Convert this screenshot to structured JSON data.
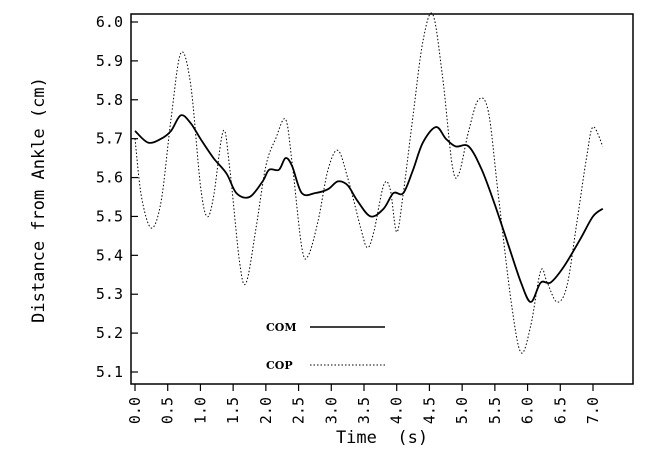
{
  "chart_data": {
    "type": "line",
    "title": "",
    "xlabel": "Time  (s)",
    "ylabel": "Distance from Ankle (cm)",
    "xlim": [
      0,
      7.2
    ],
    "ylim": [
      5.1,
      6.0
    ],
    "x_ticks": [
      "0.0",
      "0.5",
      "1.0",
      "1.5",
      "2.0",
      "2.5",
      "3.0",
      "3.5",
      "4.0",
      "4.5",
      "5.0",
      "5.5",
      "6.0",
      "6.5",
      "7.0"
    ],
    "y_ticks": [
      "5.1",
      "5.2",
      "5.3",
      "5.4",
      "5.5",
      "5.6",
      "5.7",
      "5.8",
      "5.9",
      "6.0"
    ],
    "grid": false,
    "legend_position": "bottom-left",
    "series": [
      {
        "name": "COM",
        "style": "solid",
        "color": "#000000",
        "points": [
          [
            0.0,
            5.72
          ],
          [
            0.2,
            5.69
          ],
          [
            0.4,
            5.7
          ],
          [
            0.55,
            5.72
          ],
          [
            0.7,
            5.76
          ],
          [
            0.85,
            5.74
          ],
          [
            1.0,
            5.7
          ],
          [
            1.2,
            5.65
          ],
          [
            1.4,
            5.61
          ],
          [
            1.55,
            5.56
          ],
          [
            1.75,
            5.55
          ],
          [
            1.95,
            5.59
          ],
          [
            2.05,
            5.62
          ],
          [
            2.2,
            5.62
          ],
          [
            2.3,
            5.65
          ],
          [
            2.4,
            5.63
          ],
          [
            2.55,
            5.56
          ],
          [
            2.75,
            5.56
          ],
          [
            2.95,
            5.57
          ],
          [
            3.1,
            5.59
          ],
          [
            3.25,
            5.58
          ],
          [
            3.4,
            5.54
          ],
          [
            3.6,
            5.5
          ],
          [
            3.8,
            5.52
          ],
          [
            3.95,
            5.56
          ],
          [
            4.1,
            5.56
          ],
          [
            4.25,
            5.62
          ],
          [
            4.4,
            5.69
          ],
          [
            4.6,
            5.73
          ],
          [
            4.75,
            5.7
          ],
          [
            4.9,
            5.68
          ],
          [
            5.1,
            5.68
          ],
          [
            5.3,
            5.62
          ],
          [
            5.5,
            5.53
          ],
          [
            5.7,
            5.43
          ],
          [
            5.9,
            5.33
          ],
          [
            6.05,
            5.28
          ],
          [
            6.2,
            5.33
          ],
          [
            6.35,
            5.33
          ],
          [
            6.55,
            5.37
          ],
          [
            6.8,
            5.44
          ],
          [
            7.0,
            5.5
          ],
          [
            7.15,
            5.52
          ]
        ]
      },
      {
        "name": "COP",
        "style": "dotted",
        "color": "#000000",
        "points": [
          [
            0.0,
            5.7
          ],
          [
            0.1,
            5.55
          ],
          [
            0.25,
            5.47
          ],
          [
            0.4,
            5.54
          ],
          [
            0.55,
            5.75
          ],
          [
            0.7,
            5.92
          ],
          [
            0.85,
            5.84
          ],
          [
            1.0,
            5.58
          ],
          [
            1.1,
            5.5
          ],
          [
            1.2,
            5.55
          ],
          [
            1.35,
            5.72
          ],
          [
            1.45,
            5.62
          ],
          [
            1.6,
            5.38
          ],
          [
            1.7,
            5.33
          ],
          [
            1.85,
            5.47
          ],
          [
            2.0,
            5.63
          ],
          [
            2.15,
            5.7
          ],
          [
            2.3,
            5.75
          ],
          [
            2.4,
            5.64
          ],
          [
            2.55,
            5.42
          ],
          [
            2.65,
            5.4
          ],
          [
            2.8,
            5.49
          ],
          [
            2.95,
            5.62
          ],
          [
            3.1,
            5.67
          ],
          [
            3.25,
            5.6
          ],
          [
            3.45,
            5.47
          ],
          [
            3.55,
            5.42
          ],
          [
            3.65,
            5.46
          ],
          [
            3.8,
            5.58
          ],
          [
            3.9,
            5.57
          ],
          [
            4.0,
            5.46
          ],
          [
            4.1,
            5.56
          ],
          [
            4.25,
            5.76
          ],
          [
            4.4,
            5.95
          ],
          [
            4.55,
            6.02
          ],
          [
            4.7,
            5.86
          ],
          [
            4.85,
            5.63
          ],
          [
            4.95,
            5.61
          ],
          [
            5.1,
            5.72
          ],
          [
            5.25,
            5.8
          ],
          [
            5.4,
            5.77
          ],
          [
            5.55,
            5.56
          ],
          [
            5.75,
            5.28
          ],
          [
            5.9,
            5.15
          ],
          [
            6.05,
            5.22
          ],
          [
            6.2,
            5.36
          ],
          [
            6.3,
            5.33
          ],
          [
            6.45,
            5.28
          ],
          [
            6.6,
            5.32
          ],
          [
            6.75,
            5.48
          ],
          [
            6.9,
            5.65
          ],
          [
            7.0,
            5.73
          ],
          [
            7.15,
            5.68
          ]
        ]
      }
    ]
  }
}
